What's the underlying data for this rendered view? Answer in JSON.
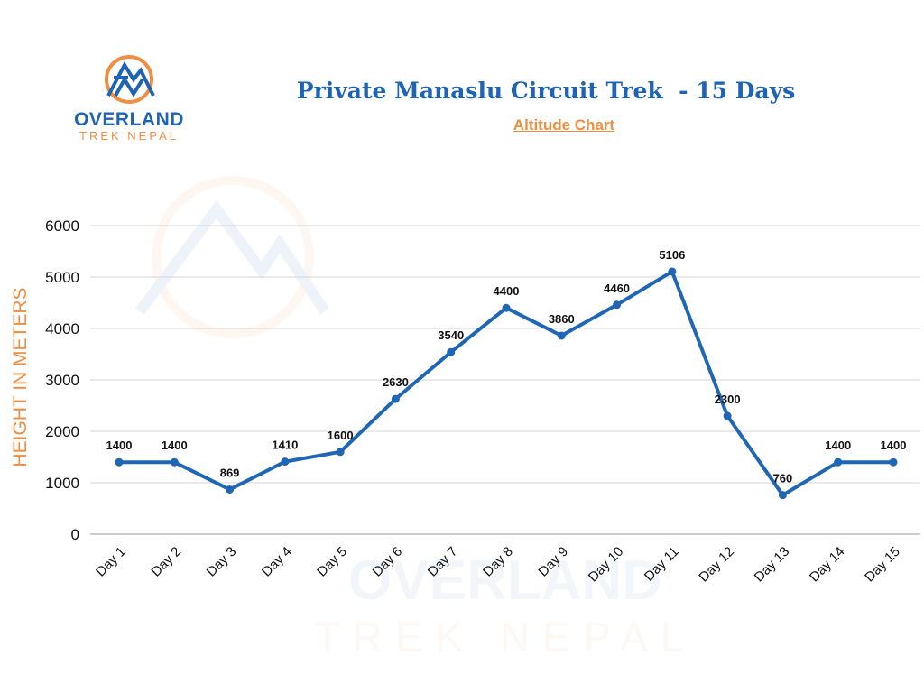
{
  "logo": {
    "brand": "OVERLAND",
    "sub": "TREK NEPAL",
    "colors": {
      "blue": "#1e63b4",
      "orange": "#ee8e43"
    }
  },
  "chart_data": {
    "type": "line",
    "title": "Private Manaslu Circuit Trek  - 15 Days",
    "subtitle": "Altitude Chart",
    "ylabel": "HEIGHT IN METERS",
    "xlabel": "",
    "categories": [
      "Day 1",
      "Day 2",
      "Day 3",
      "Day 4",
      "Day 5",
      "Day 6",
      "Day 7",
      "Day 8",
      "Day 9",
      "Day 10",
      "Day 11",
      "Day 12",
      "Day 13",
      "Day 14",
      "Day 15"
    ],
    "values": [
      1400,
      1400,
      869,
      1410,
      1600,
      2630,
      3540,
      4400,
      3860,
      4460,
      5106,
      2300,
      760,
      1400,
      1400
    ],
    "ylim": [
      0,
      6000
    ],
    "yticks": [
      0,
      1000,
      2000,
      3000,
      4000,
      5000,
      6000
    ],
    "grid": true,
    "data_labels": true,
    "line_color": "#1f66b5",
    "ylabel_color": "#ee8e43"
  }
}
